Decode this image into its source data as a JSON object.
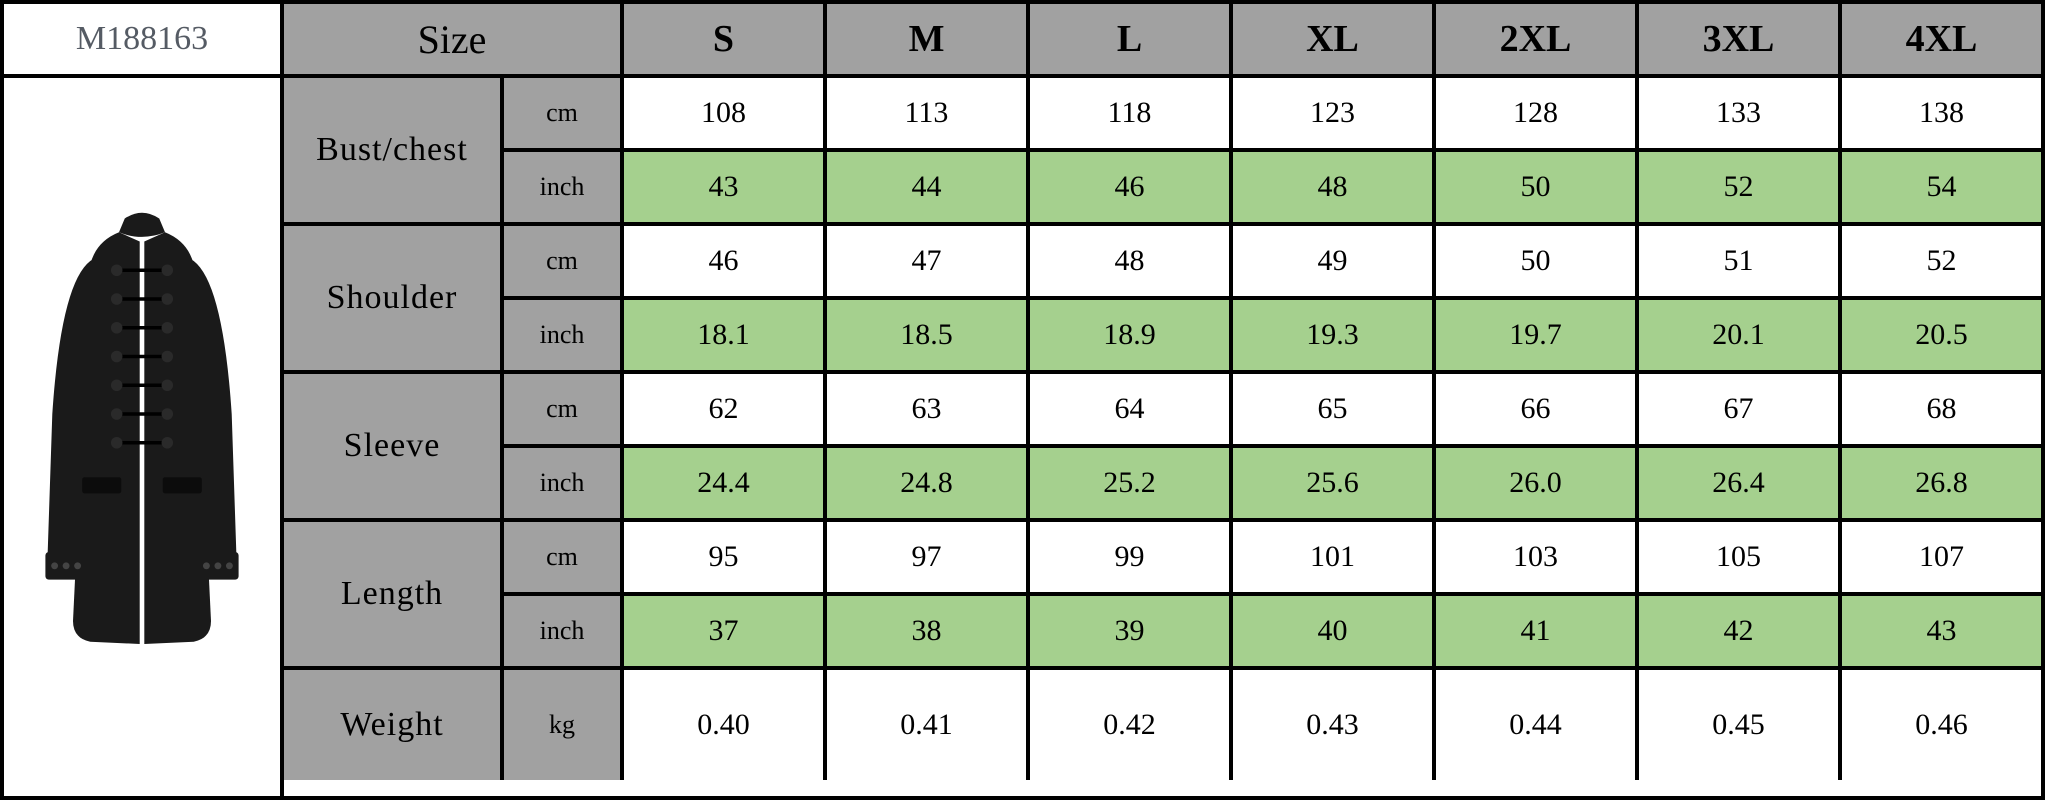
{
  "product_code": "M188163",
  "size_label": "Size",
  "sizes": [
    "S",
    "M",
    "L",
    "XL",
    "2XL",
    "3XL",
    "4XL"
  ],
  "colors": {
    "header_bg": "#a1a1a1",
    "row_white": "#ffffff",
    "row_green": "#a5d08e",
    "border": "#000000",
    "text": "#000000",
    "code_text": "#555b64"
  },
  "fonts": {
    "header_size": 40,
    "label_size": 34,
    "unit_size": 26,
    "value_size": 30,
    "code_size": 34
  },
  "measurements": [
    {
      "label": "Bust/chest",
      "rows": [
        {
          "unit": "cm",
          "bg": "white",
          "values": [
            "108",
            "113",
            "118",
            "123",
            "128",
            "133",
            "138"
          ]
        },
        {
          "unit": "inch",
          "bg": "green",
          "values": [
            "43",
            "44",
            "46",
            "48",
            "50",
            "52",
            "54"
          ]
        }
      ]
    },
    {
      "label": "Shoulder",
      "rows": [
        {
          "unit": "cm",
          "bg": "white",
          "values": [
            "46",
            "47",
            "48",
            "49",
            "50",
            "51",
            "52"
          ]
        },
        {
          "unit": "inch",
          "bg": "green",
          "values": [
            "18.1",
            "18.5",
            "18.9",
            "19.3",
            "19.7",
            "20.1",
            "20.5"
          ]
        }
      ]
    },
    {
      "label": "Sleeve",
      "rows": [
        {
          "unit": "cm",
          "bg": "white",
          "values": [
            "62",
            "63",
            "64",
            "65",
            "66",
            "67",
            "68"
          ]
        },
        {
          "unit": "inch",
          "bg": "green",
          "values": [
            "24.4",
            "24.8",
            "25.2",
            "25.6",
            "26.0",
            "26.4",
            "26.8"
          ]
        }
      ]
    },
    {
      "label": "Length",
      "rows": [
        {
          "unit": "cm",
          "bg": "white",
          "values": [
            "95",
            "97",
            "99",
            "101",
            "103",
            "105",
            "107"
          ]
        },
        {
          "unit": "inch",
          "bg": "green",
          "values": [
            "37",
            "38",
            "39",
            "40",
            "41",
            "42",
            "43"
          ]
        }
      ]
    },
    {
      "label": "Weight",
      "rows": [
        {
          "unit": "kg",
          "bg": "white",
          "values": [
            "0.40",
            "0.41",
            "0.42",
            "0.43",
            "0.44",
            "0.45",
            "0.46"
          ]
        }
      ]
    }
  ]
}
